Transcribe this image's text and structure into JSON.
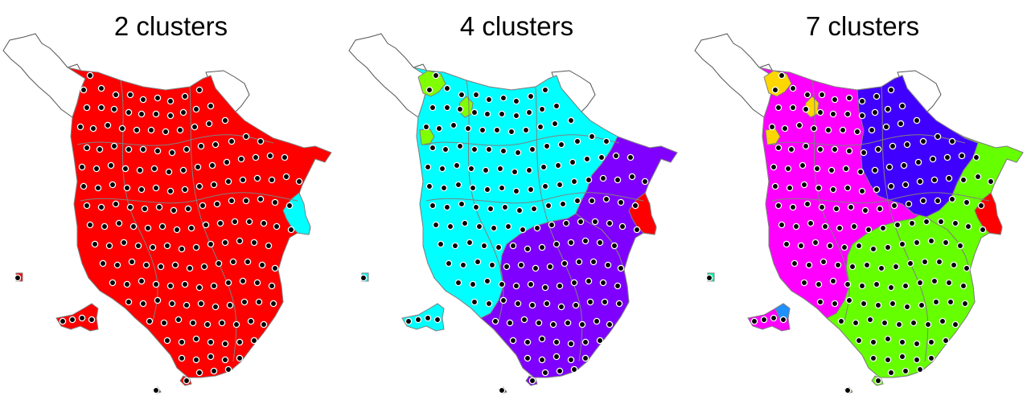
{
  "figure": {
    "panels": [
      {
        "title": "2 clusters",
        "clusters": [
          {
            "color": "#ff0000",
            "regions": [
              "mainland",
              "islands"
            ]
          },
          {
            "color": "#00ffff",
            "regions": [
              "east_enclave"
            ]
          }
        ],
        "unclustered_color": "#ffffff"
      },
      {
        "title": "4 clusters",
        "clusters": [
          {
            "color": "#00ffff",
            "regions": [
              "west",
              "islands"
            ]
          },
          {
            "color": "#7f00ff",
            "regions": [
              "east",
              "south"
            ]
          },
          {
            "color": "#80ff00",
            "regions": [
              "northwest_patches"
            ]
          },
          {
            "color": "#ff0000",
            "regions": [
              "east_enclave"
            ]
          }
        ],
        "unclustered_color": "#ffffff"
      },
      {
        "title": "7 clusters",
        "clusters": [
          {
            "color": "#ff00ff",
            "regions": [
              "west",
              "islands"
            ]
          },
          {
            "color": "#4000ff",
            "regions": [
              "north_east"
            ]
          },
          {
            "color": "#66ff00",
            "regions": [
              "east",
              "south"
            ]
          },
          {
            "color": "#ffd700",
            "regions": [
              "northwest_patches"
            ]
          },
          {
            "color": "#ff0000",
            "regions": [
              "east_enclave"
            ]
          },
          {
            "color": "#1e90ff",
            "regions": [
              "island_patch"
            ]
          },
          {
            "color": "#00ffaa",
            "regions": [
              "small_island"
            ]
          }
        ],
        "unclustered_color": "#ffffff"
      }
    ],
    "colors": {
      "border": "#808080",
      "point_fill": "#000000",
      "point_ring": "#ffffff"
    }
  }
}
